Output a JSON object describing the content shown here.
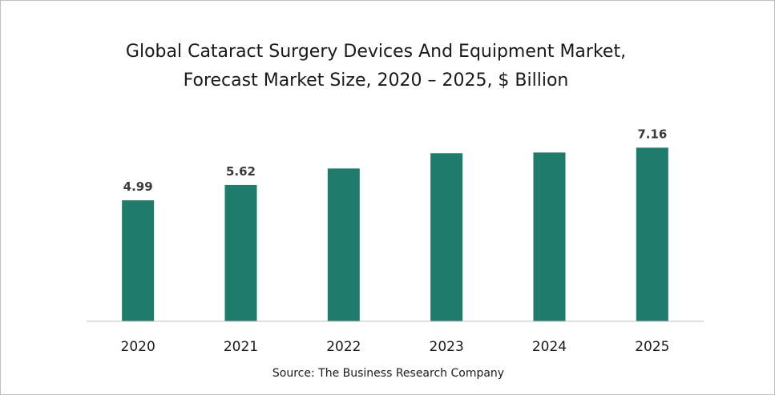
{
  "chart_data": {
    "type": "bar",
    "title_line1": "Global Cataract Surgery Devices And Equipment Market,",
    "title_line2": "Forecast Market Size, 2020 – 2025, $ Billion",
    "xlabel": "",
    "ylabel": "",
    "categories": [
      "2020",
      "2021",
      "2022",
      "2023",
      "2024",
      "2025"
    ],
    "values": [
      4.99,
      5.62,
      6.3,
      6.93,
      6.96,
      7.16
    ],
    "data_labels": [
      "4.99",
      "5.62",
      "",
      "",
      "",
      "7.16"
    ],
    "ylim": [
      0,
      7.5
    ],
    "grid": false,
    "legend": "none",
    "bar_color": "#1f7b6c",
    "source": "Source: The Business Research Company"
  }
}
